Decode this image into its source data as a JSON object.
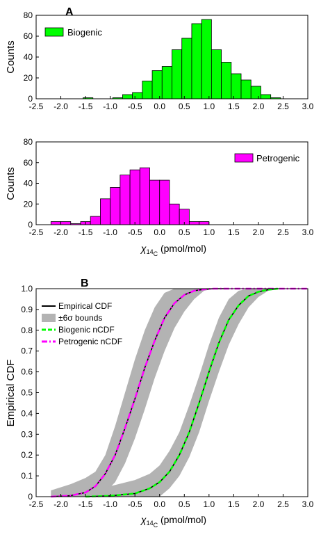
{
  "chart_data": [
    {
      "type": "bar",
      "panel_label": "A",
      "ylabel": "Counts",
      "legend": {
        "entries": [
          "Biogenic"
        ],
        "position": "top-left"
      },
      "color": "#00ff00",
      "xlim": [
        -2.5,
        3.0
      ],
      "ylim": [
        0,
        80
      ],
      "xticks": [
        "-2.5",
        "-2.0",
        "-1.5",
        "-1.0",
        "-0.5",
        "0.0",
        "0.5",
        "1.0",
        "1.5",
        "2.0",
        "2.5",
        "3.0"
      ],
      "yticks": [
        "0",
        "20",
        "40",
        "60",
        "80"
      ],
      "bins": [
        {
          "x0": -1.55,
          "x1": -1.35,
          "count": 1
        },
        {
          "x0": -0.95,
          "x1": -0.75,
          "count": 1
        },
        {
          "x0": -0.75,
          "x1": -0.55,
          "count": 4
        },
        {
          "x0": -0.55,
          "x1": -0.35,
          "count": 6
        },
        {
          "x0": -0.35,
          "x1": -0.15,
          "count": 17
        },
        {
          "x0": -0.15,
          "x1": 0.05,
          "count": 27
        },
        {
          "x0": 0.05,
          "x1": 0.25,
          "count": 31
        },
        {
          "x0": 0.25,
          "x1": 0.45,
          "count": 47
        },
        {
          "x0": 0.45,
          "x1": 0.65,
          "count": 58
        },
        {
          "x0": 0.65,
          "x1": 0.85,
          "count": 72
        },
        {
          "x0": 0.85,
          "x1": 1.05,
          "count": 76
        },
        {
          "x0": 1.05,
          "x1": 1.25,
          "count": 47
        },
        {
          "x0": 1.25,
          "x1": 1.45,
          "count": 35
        },
        {
          "x0": 1.45,
          "x1": 1.65,
          "count": 24
        },
        {
          "x0": 1.65,
          "x1": 1.85,
          "count": 18
        },
        {
          "x0": 1.85,
          "x1": 2.05,
          "count": 12
        },
        {
          "x0": 2.05,
          "x1": 2.25,
          "count": 4
        },
        {
          "x0": 2.25,
          "x1": 2.45,
          "count": 1
        }
      ]
    },
    {
      "type": "bar",
      "ylabel": "Counts",
      "xlabel_prefix": "χ",
      "xlabel_sub": "14",
      "xlabel_subsub": "C",
      "xlabel_suffix": " (pmol/mol)",
      "legend": {
        "entries": [
          "Petrogenic"
        ],
        "position": "top-right"
      },
      "color": "#ff00ff",
      "xlim": [
        -2.5,
        3.0
      ],
      "ylim": [
        0,
        80
      ],
      "xticks": [
        "-2.5",
        "-2.0",
        "-1.5",
        "-1.0",
        "-0.5",
        "0.0",
        "0.5",
        "1.0",
        "1.5",
        "2.0",
        "2.5",
        "3.0"
      ],
      "yticks": [
        "0",
        "20",
        "40",
        "60",
        "80"
      ],
      "bins": [
        {
          "x0": -2.2,
          "x1": -2.0,
          "count": 3
        },
        {
          "x0": -2.0,
          "x1": -1.8,
          "count": 3
        },
        {
          "x0": -1.8,
          "x1": -1.6,
          "count": 1
        },
        {
          "x0": -1.6,
          "x1": -1.4,
          "count": 3
        },
        {
          "x0": -1.4,
          "x1": -1.2,
          "count": 8
        },
        {
          "x0": -1.2,
          "x1": -1.0,
          "count": 25
        },
        {
          "x0": -1.0,
          "x1": -0.8,
          "count": 36
        },
        {
          "x0": -0.8,
          "x1": -0.6,
          "count": 48
        },
        {
          "x0": -0.6,
          "x1": -0.4,
          "count": 53
        },
        {
          "x0": -0.4,
          "x1": -0.2,
          "count": 55
        },
        {
          "x0": -0.2,
          "x1": 0.0,
          "count": 43
        },
        {
          "x0": 0.0,
          "x1": 0.2,
          "count": 43
        },
        {
          "x0": 0.2,
          "x1": 0.4,
          "count": 20
        },
        {
          "x0": 0.4,
          "x1": 0.6,
          "count": 15
        },
        {
          "x0": 0.6,
          "x1": 0.8,
          "count": 3
        },
        {
          "x0": 0.8,
          "x1": 1.0,
          "count": 3
        }
      ]
    },
    {
      "type": "line",
      "panel_label": "B",
      "ylabel": "Empirical CDF",
      "xlabel_prefix": "χ",
      "xlabel_sub": "14",
      "xlabel_subsub": "C",
      "xlabel_suffix": " (pmol/mol)",
      "xlim": [
        -2.5,
        3.0
      ],
      "ylim": [
        0,
        1
      ],
      "xticks": [
        "-2.5",
        "-2.0",
        "-1.5",
        "-1.0",
        "-0.5",
        "0.0",
        "0.5",
        "1.0",
        "1.5",
        "2.0",
        "2.5",
        "3.0"
      ],
      "yticks": [
        "0",
        "0.1",
        "0.2",
        "0.3",
        "0.4",
        "0.5",
        "0.6",
        "0.7",
        "0.8",
        "0.9",
        "1.0"
      ],
      "legend": {
        "position": "top-left",
        "entries": [
          "Empirical CDF",
          "±6σ bounds",
          "Biogenic nCDF",
          "Petrogenic nCDF"
        ]
      },
      "colors": {
        "empirical": "#000000",
        "bounds": "#b3b3b3",
        "biogenic": "#00ff00",
        "petrogenic": "#ff00ff"
      },
      "series": [
        {
          "group": "petrogenic",
          "x": [
            -2.2,
            -1.8,
            -1.5,
            -1.3,
            -1.1,
            -0.9,
            -0.7,
            -0.5,
            -0.3,
            -0.1,
            0.1,
            0.3,
            0.5,
            0.7,
            0.9,
            1.1,
            1.3
          ],
          "y": [
            0.0,
            0.005,
            0.02,
            0.05,
            0.11,
            0.2,
            0.33,
            0.47,
            0.62,
            0.75,
            0.86,
            0.93,
            0.97,
            0.99,
            0.997,
            1.0,
            1.0
          ],
          "lower": [
            0.0,
            0.0,
            0.0,
            0.0,
            0.02,
            0.07,
            0.16,
            0.28,
            0.42,
            0.57,
            0.7,
            0.81,
            0.89,
            0.95,
            0.99,
            1.0,
            1.0
          ],
          "upper": [
            0.03,
            0.06,
            0.09,
            0.12,
            0.2,
            0.34,
            0.5,
            0.66,
            0.8,
            0.91,
            0.98,
            1.0,
            1.0,
            1.0,
            1.0,
            1.0,
            1.0
          ]
        },
        {
          "group": "biogenic",
          "x": [
            -1.5,
            -1.0,
            -0.5,
            -0.2,
            0.0,
            0.2,
            0.4,
            0.6,
            0.8,
            1.0,
            1.2,
            1.4,
            1.6,
            1.8,
            2.0,
            2.2,
            2.4
          ],
          "y": [
            0.0,
            0.004,
            0.015,
            0.04,
            0.07,
            0.12,
            0.2,
            0.31,
            0.45,
            0.6,
            0.74,
            0.85,
            0.92,
            0.965,
            0.985,
            0.995,
            1.0
          ],
          "lower": [
            0.0,
            0.0,
            0.0,
            0.0,
            0.0,
            0.04,
            0.1,
            0.19,
            0.31,
            0.46,
            0.6,
            0.73,
            0.83,
            0.91,
            0.96,
            0.99,
            1.0
          ],
          "upper": [
            0.02,
            0.05,
            0.08,
            0.11,
            0.15,
            0.22,
            0.31,
            0.44,
            0.58,
            0.73,
            0.86,
            0.95,
            0.99,
            1.0,
            1.0,
            1.0,
            1.0
          ]
        }
      ]
    }
  ]
}
